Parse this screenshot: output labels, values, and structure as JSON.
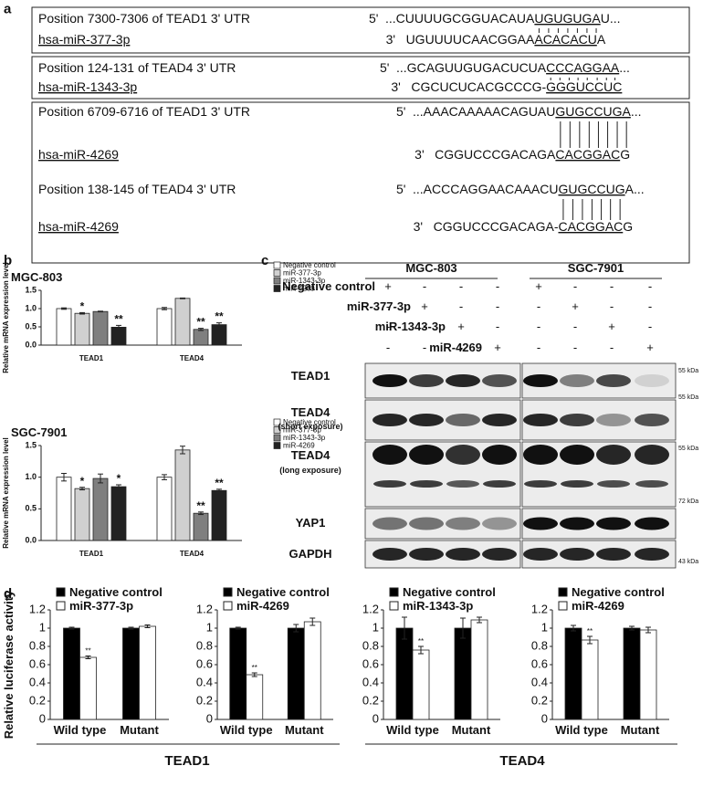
{
  "panel_labels": [
    "a",
    "b",
    "c",
    "d"
  ],
  "panel_a": {
    "boxes": [
      [
        {
          "position": "Position 7300-7306 of TEAD1 3' UTR",
          "target_prime": "5'",
          "target": [
            "...CUUUUGCGGUACAUA",
            "UGUGUGA",
            "U..."
          ],
          "mirna": "hsa-miR-377-3p",
          "mirna_prime": "3'",
          "mirna_seq": [
            "UGUUUUCAACGGAA",
            "ACACACU",
            "A"
          ]
        }
      ],
      [
        {
          "position": "Position 124-131 of TEAD4 3' UTR",
          "target_prime": "5'",
          "target": [
            "...GCAGUUGUGACUCUA",
            "CCCAGGAA",
            "..."
          ],
          "mirna": "hsa-miR-1343-3p",
          "mirna_prime": "3'",
          "mirna_seq": [
            "CGCUCUCACGCCCG-",
            "GGGUCCUC"
          ]
        }
      ],
      [
        {
          "position": "Position 6709-6716 of TEAD1 3' UTR",
          "target_prime": "5'",
          "target": [
            "...AAACAAAAACAGUAU",
            "GUGCCUGA",
            "..."
          ],
          "mirna": "hsa-miR-4269",
          "mirna_prime": "3'",
          "mirna_seq": [
            "CGGUCCCGACAGA",
            "CACGGAC",
            "G"
          ]
        },
        {
          "position": "Position 138-145 of TEAD4 3' UTR",
          "target_prime": "5'",
          "target": [
            "...ACCCAGGAACAAACU",
            "GUGCCUG",
            "A..."
          ],
          "mirna": "hsa-miR-4269",
          "mirna_prime": "3'",
          "mirna_seq": [
            "CGGUCCCGACAGA-",
            "CACGGAC",
            "G"
          ]
        }
      ]
    ]
  },
  "chart_data": [
    {
      "type": "bar",
      "title": "MGC-803",
      "ylabel": "Relative mRNA expression level",
      "categories": [
        "TEAD1",
        "TEAD4"
      ],
      "legend": "right",
      "series": [
        {
          "name": "Negative control",
          "color": "#ffffff",
          "values": [
            1.0,
            1.0
          ],
          "errors": [
            0.02,
            0.03
          ],
          "significance": [
            null,
            null
          ]
        },
        {
          "name": "miR-377-3p",
          "color": "#d0d0d0",
          "values": [
            0.87,
            1.28
          ],
          "errors": [
            0.02,
            0.01
          ],
          "significance": [
            "*",
            null
          ]
        },
        {
          "name": "miR-1343-3p",
          "color": "#7f7f7f",
          "values": [
            0.92,
            0.43
          ],
          "errors": [
            0.01,
            0.03
          ],
          "significance": [
            null,
            "**"
          ]
        },
        {
          "name": "miR-4269",
          "color": "#222222",
          "values": [
            0.49,
            0.56
          ],
          "errors": [
            0.05,
            0.05
          ],
          "significance": [
            "**",
            "**"
          ]
        }
      ],
      "ylim": [
        0,
        1.5
      ],
      "yticks": [
        {
          "value": 0,
          "label": "0.0"
        },
        {
          "value": 0.5,
          "label": "0.5"
        },
        {
          "value": 1,
          "label": "1.0"
        },
        {
          "value": 1.5,
          "label": "1.5"
        }
      ]
    },
    {
      "type": "bar",
      "title": "SGC-7901",
      "ylabel": "Relative mRNA expression level",
      "categories": [
        "TEAD1",
        "TEAD4"
      ],
      "legend": "right",
      "series": [
        {
          "name": "Negative control",
          "color": "#ffffff",
          "values": [
            1.0,
            1.0
          ],
          "errors": [
            0.06,
            0.04
          ],
          "significance": [
            null,
            null
          ]
        },
        {
          "name": "miR-377-3p",
          "color": "#d0d0d0",
          "values": [
            0.82,
            1.43
          ],
          "errors": [
            0.02,
            0.06
          ],
          "significance": [
            "*",
            null
          ]
        },
        {
          "name": "miR-1343-3p",
          "color": "#7f7f7f",
          "values": [
            0.98,
            0.43
          ],
          "errors": [
            0.07,
            0.02
          ],
          "significance": [
            null,
            "**"
          ]
        },
        {
          "name": "miR-4269",
          "color": "#222222",
          "values": [
            0.85,
            0.79
          ],
          "errors": [
            0.03,
            0.02
          ],
          "significance": [
            "*",
            "**"
          ]
        }
      ],
      "ylim": [
        0,
        1.5
      ],
      "yticks": [
        {
          "value": 0,
          "label": "0.0"
        },
        {
          "value": 0.5,
          "label": "0.5"
        },
        {
          "value": 1,
          "label": "1.0"
        },
        {
          "value": 1.5,
          "label": "1.5"
        }
      ]
    },
    {
      "type": "bar",
      "categories": [
        "Wild type",
        "Mutant"
      ],
      "legend": "top",
      "series": [
        {
          "name": "Negative control",
          "color": "#000000",
          "values": [
            1.0,
            1.0
          ],
          "errors": [
            0.01,
            0.01
          ],
          "significance": [
            null,
            null
          ]
        },
        {
          "name": "miR-377-3p",
          "color": "#ffffff",
          "values": [
            0.68,
            1.02
          ],
          "errors": [
            0.015,
            0.015
          ],
          "significance": [
            "**",
            null
          ]
        }
      ],
      "ylim": [
        0,
        1.2
      ],
      "yticks": [
        0,
        0.2,
        0.4,
        0.6,
        0.8,
        1,
        1.2
      ]
    },
    {
      "type": "bar",
      "categories": [
        "Wild type",
        "Mutant"
      ],
      "legend": "top",
      "series": [
        {
          "name": "Negative control",
          "color": "#000000",
          "values": [
            1.0,
            1.0
          ],
          "errors": [
            0.01,
            0.04
          ],
          "significance": [
            null,
            null
          ]
        },
        {
          "name": "miR-4269",
          "color": "#ffffff",
          "values": [
            0.49,
            1.07
          ],
          "errors": [
            0.02,
            0.04
          ],
          "significance": [
            "**",
            null
          ]
        }
      ],
      "ylim": [
        0,
        1.2
      ],
      "yticks": [
        0,
        0.2,
        0.4,
        0.6,
        0.8,
        1,
        1.2
      ]
    },
    {
      "type": "bar",
      "categories": [
        "Wild type",
        "Mutant"
      ],
      "legend": "top",
      "series": [
        {
          "name": "Negative control",
          "color": "#000000",
          "values": [
            1.0,
            1.0
          ],
          "errors": [
            0.12,
            0.11
          ],
          "significance": [
            null,
            null
          ]
        },
        {
          "name": "miR-1343-3p",
          "color": "#ffffff",
          "values": [
            0.76,
            1.09
          ],
          "errors": [
            0.04,
            0.03
          ],
          "significance": [
            "**",
            null
          ]
        }
      ],
      "ylim": [
        0,
        1.2
      ],
      "yticks": [
        0,
        0.2,
        0.4,
        0.6,
        0.8,
        1,
        1.2
      ]
    },
    {
      "type": "bar",
      "categories": [
        "Wild type",
        "Mutant"
      ],
      "legend": "top",
      "series": [
        {
          "name": "Negative control",
          "color": "#000000",
          "values": [
            1.0,
            1.0
          ],
          "errors": [
            0.03,
            0.02
          ],
          "significance": [
            null,
            null
          ]
        },
        {
          "name": "miR-4269",
          "color": "#ffffff",
          "values": [
            0.87,
            0.98
          ],
          "errors": [
            0.04,
            0.03
          ],
          "significance": [
            "**",
            null
          ]
        }
      ],
      "ylim": [
        0,
        1.2
      ],
      "yticks": [
        0,
        0.2,
        0.4,
        0.6,
        0.8,
        1,
        1.2
      ]
    }
  ],
  "panel_c": {
    "cell_lines": [
      "MGC-803",
      "SGC-7901"
    ],
    "treatments": [
      {
        "name": "Negative control",
        "signs": [
          "+",
          "-",
          "-",
          "-",
          "+",
          "-",
          "-",
          "-"
        ]
      },
      {
        "name": "miR-377-3p",
        "signs": [
          "-",
          "+",
          "-",
          "-",
          "-",
          "+",
          "-",
          "-"
        ]
      },
      {
        "name": "miR-1343-3p",
        "signs": [
          "-",
          "-",
          "+",
          "-",
          "-",
          "-",
          "+",
          "-"
        ]
      },
      {
        "name": "miR-4269",
        "signs": [
          "-",
          "-",
          "-",
          "+",
          "-",
          "-",
          "-",
          "+"
        ]
      }
    ],
    "blots": [
      {
        "name": "TEAD1",
        "marker": "55 kDa"
      },
      {
        "name": "TEAD4",
        "note": "(short exposure)",
        "marker": "55 kDa"
      },
      {
        "name": "TEAD4",
        "note": "(long exposure)",
        "marker": "55 kDa"
      },
      {
        "name": "YAP1",
        "marker": "72 kDa"
      },
      {
        "name": "GAPDH",
        "marker": "43 kDa"
      }
    ]
  },
  "panel_d": {
    "ylabel": "Relative luciferase activity",
    "groups": [
      "TEAD1",
      "TEAD4"
    ]
  }
}
